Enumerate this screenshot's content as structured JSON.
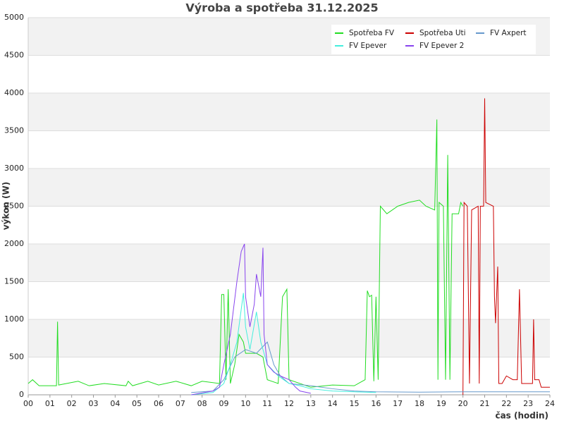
{
  "chart_data": {
    "type": "line",
    "title": "Výroba a spotřeba 31.12.2025",
    "ylabel": "výkon (W)",
    "xlabel": "čas (hodin)",
    "xlim": [
      0,
      24
    ],
    "xticks": [
      {
        "value": 0,
        "label": "00"
      },
      {
        "value": 1,
        "label": "01"
      },
      {
        "value": 2,
        "label": "02"
      },
      {
        "value": 3,
        "label": "03"
      },
      {
        "value": 4,
        "label": "04"
      },
      {
        "value": 5,
        "label": "05"
      },
      {
        "value": 6,
        "label": "06"
      },
      {
        "value": 7,
        "label": "07"
      },
      {
        "value": 8,
        "label": "08"
      },
      {
        "value": 9,
        "label": "09"
      },
      {
        "value": 10,
        "label": "10"
      },
      {
        "value": 11,
        "label": "11"
      },
      {
        "value": 12,
        "label": "12"
      },
      {
        "value": 13,
        "label": "13"
      },
      {
        "value": 14,
        "label": "14"
      },
      {
        "value": 15,
        "label": "15"
      },
      {
        "value": 16,
        "label": "16"
      },
      {
        "value": 17,
        "label": "17"
      },
      {
        "value": 18,
        "label": "18"
      },
      {
        "value": 19,
        "label": "19"
      },
      {
        "value": 20,
        "label": "20"
      },
      {
        "value": 21,
        "label": "21"
      },
      {
        "value": 22,
        "label": "22"
      },
      {
        "value": 23,
        "label": "23"
      },
      {
        "value": 24,
        "label": "24"
      }
    ],
    "ylim": [
      0,
      5000
    ],
    "yticks": [
      0,
      500,
      1000,
      1500,
      2000,
      2500,
      3000,
      3500,
      4000,
      4500,
      5000
    ],
    "grid": true,
    "legend": "upper right",
    "series": [
      {
        "name": "Spotřeba FV",
        "color": "#22dd22",
        "x": [
          0,
          0.2,
          0.5,
          1.3,
          1.35,
          1.4,
          2.3,
          2.8,
          3.5,
          4.5,
          4.6,
          4.8,
          5.5,
          6,
          6.8,
          7.5,
          8.0,
          8.8,
          8.9,
          9.0,
          9.1,
          9.2,
          9.3,
          9.5,
          9.7,
          9.9,
          10.0,
          10.5,
          10.8,
          11.0,
          11.5,
          11.7,
          11.9,
          12.0,
          12.5,
          13,
          14,
          15,
          15.5,
          15.6,
          15.7,
          15.8,
          15.9,
          16.0,
          16.1,
          16.2,
          16.5,
          17,
          17.5,
          18,
          18.3,
          18.7,
          18.8,
          18.85,
          18.9,
          19.1,
          19.2,
          19.3,
          19.4,
          19.5,
          19.8,
          19.9,
          20.0
        ],
        "values": [
          150,
          200,
          120,
          120,
          970,
          130,
          180,
          120,
          150,
          120,
          180,
          120,
          180,
          130,
          180,
          120,
          180,
          150,
          1330,
          1330,
          200,
          1400,
          150,
          400,
          800,
          700,
          550,
          550,
          500,
          200,
          150,
          1300,
          1400,
          200,
          150,
          100,
          130,
          120,
          200,
          1380,
          1300,
          1320,
          180,
          1300,
          200,
          2500,
          2400,
          2500,
          2550,
          2580,
          2500,
          2450,
          3650,
          200,
          2550,
          2500,
          200,
          3180,
          200,
          2400,
          2400,
          2550,
          2500
        ]
      },
      {
        "name": "Spotřeba Uti",
        "color": "#cc0000",
        "x": [
          20,
          20.05,
          20.2,
          20.3,
          20.4,
          20.7,
          20.75,
          20.8,
          20.95,
          21.0,
          21.05,
          21.4,
          21.45,
          21.5,
          21.6,
          21.65,
          21.8,
          22.0,
          22.3,
          22.5,
          22.6,
          22.7,
          23.0,
          23.2,
          23.25,
          23.3,
          23.5,
          23.6,
          24
        ],
        "values": [
          0,
          2550,
          2500,
          150,
          2450,
          2500,
          150,
          2500,
          2500,
          3930,
          2550,
          2500,
          1300,
          950,
          1700,
          150,
          150,
          250,
          200,
          200,
          1400,
          150,
          150,
          150,
          1000,
          200,
          200,
          100,
          100
        ]
      },
      {
        "name": "FV Axpert",
        "color": "#6699cc",
        "x": [
          7.5,
          8.5,
          9,
          9.5,
          10,
          10.5,
          11,
          11.3,
          11.6,
          12,
          13,
          14,
          15,
          16,
          18,
          20,
          22,
          24
        ],
        "values": [
          30,
          50,
          200,
          500,
          600,
          550,
          700,
          400,
          250,
          150,
          120,
          80,
          50,
          40,
          35,
          40,
          40,
          40
        ]
      },
      {
        "name": "FV Epever",
        "color": "#44eedd",
        "x": [
          7.5,
          8.5,
          9.0,
          9.3,
          9.6,
          9.9,
          10.0,
          10.2,
          10.5,
          10.7,
          11.0,
          11.5,
          12.0,
          12.5,
          13,
          14,
          15,
          16
        ],
        "values": [
          0,
          30,
          150,
          400,
          700,
          1350,
          900,
          600,
          1100,
          700,
          400,
          250,
          150,
          120,
          80,
          50,
          40,
          30
        ]
      },
      {
        "name": "FV Epever 2",
        "color": "#8844ee",
        "x": [
          7.5,
          8.5,
          8.8,
          9.0,
          9.3,
          9.6,
          9.8,
          9.95,
          10.0,
          10.2,
          10.4,
          10.5,
          10.7,
          10.8,
          10.85,
          11.0,
          11.3,
          11.6,
          12.0,
          12.3,
          12.5,
          13
        ],
        "values": [
          0,
          50,
          100,
          400,
          800,
          1500,
          1900,
          2000,
          1300,
          900,
          1200,
          1600,
          1300,
          1950,
          800,
          400,
          300,
          250,
          200,
          100,
          50,
          20
        ]
      }
    ]
  }
}
